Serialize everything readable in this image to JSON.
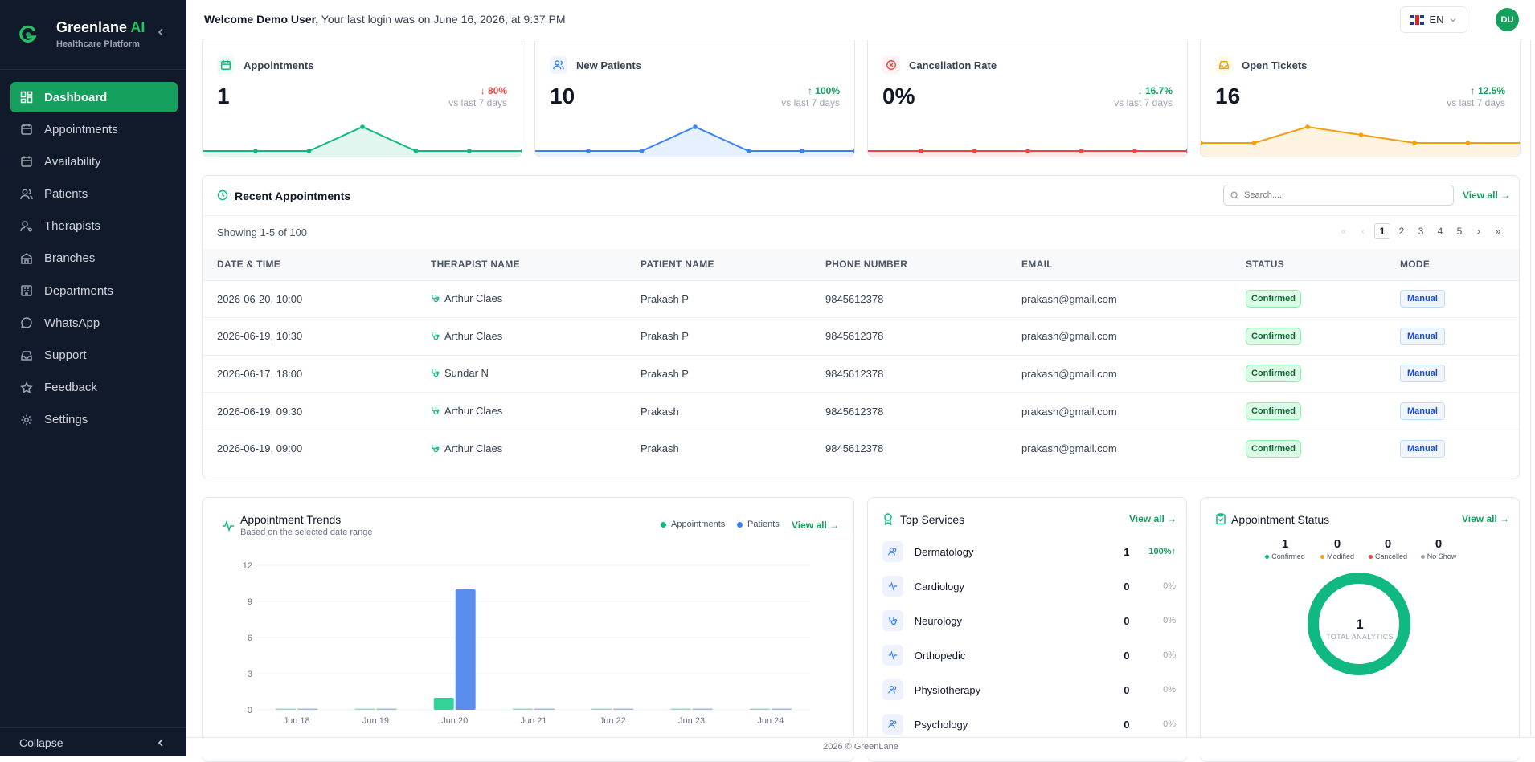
{
  "brand": {
    "name": "Greenlane",
    "name_accent": "AI",
    "subtitle": "Healthcare Platform"
  },
  "sidebar": {
    "items": [
      {
        "label": "Dashboard",
        "icon": "dashboard-icon",
        "active": true
      },
      {
        "label": "Appointments",
        "icon": "calendar-icon"
      },
      {
        "label": "Availability",
        "icon": "calendar-icon"
      },
      {
        "label": "Patients",
        "icon": "users-icon"
      },
      {
        "label": "Therapists",
        "icon": "user-stethoscope-icon"
      },
      {
        "label": "Branches",
        "icon": "building-icon"
      },
      {
        "label": "Departments",
        "icon": "building-icon"
      },
      {
        "label": "WhatsApp",
        "icon": "chat-icon"
      },
      {
        "label": "Support",
        "icon": "inbox-icon"
      },
      {
        "label": "Feedback",
        "icon": "star-icon"
      },
      {
        "label": "Settings",
        "icon": "gear-icon"
      }
    ],
    "collapse_label": "Collapse"
  },
  "header": {
    "welcome_bold": "Welcome Demo User,",
    "welcome_rest": " Your last login was on June 16, 2026, at 9:37 PM",
    "language": "EN",
    "avatar_initials": "DU"
  },
  "stats": [
    {
      "label": "Appointments",
      "value": "1",
      "change": "↓ 80%",
      "direction": "down",
      "sub": "vs last 7 days",
      "color": "#10b981",
      "spark": [
        0,
        0,
        1,
        0,
        0,
        0
      ]
    },
    {
      "label": "New Patients",
      "value": "10",
      "change": "↑ 100%",
      "direction": "up",
      "sub": "vs last 7 days",
      "color": "#3b82f6",
      "spark": [
        0,
        0,
        10,
        0,
        0,
        0
      ]
    },
    {
      "label": "Cancellation Rate",
      "value": "0%",
      "change": "↓ 16.7%",
      "direction": "up",
      "sub": "vs last 7 days",
      "color": "#ef4444",
      "spark": [
        0,
        0,
        0,
        0,
        0,
        0
      ]
    },
    {
      "label": "Open Tickets",
      "value": "16",
      "change": "↑ 12.5%",
      "direction": "up",
      "sub": "vs last 7 days",
      "color": "#f59e0b",
      "spark": [
        1,
        1,
        3,
        2,
        1,
        1,
        1
      ]
    }
  ],
  "recent": {
    "title": "Recent Appointments",
    "search_placeholder": "Search....",
    "view_all": "View all →",
    "showing": "Showing 1-5 of 100",
    "pages": [
      "1",
      "2",
      "3",
      "4",
      "5"
    ],
    "columns": [
      "DATE & TIME",
      "THERAPIST NAME",
      "PATIENT NAME",
      "PHONE NUMBER",
      "EMAIL",
      "STATUS",
      "MODE"
    ],
    "rows": [
      [
        "2026-06-20, 10:00",
        "Arthur Claes",
        "Prakash P",
        "9845612378",
        "prakash@gmail.com",
        "Confirmed",
        "Manual"
      ],
      [
        "2026-06-19, 10:30",
        "Arthur Claes",
        "Prakash P",
        "9845612378",
        "prakash@gmail.com",
        "Confirmed",
        "Manual"
      ],
      [
        "2026-06-17, 18:00",
        "Sundar N",
        "Prakash P",
        "9845612378",
        "prakash@gmail.com",
        "Confirmed",
        "Manual"
      ],
      [
        "2026-06-19, 09:30",
        "Arthur Claes",
        "Prakash",
        "9845612378",
        "prakash@gmail.com",
        "Confirmed",
        "Manual"
      ],
      [
        "2026-06-19, 09:00",
        "Arthur Claes",
        "Prakash",
        "9845612378",
        "prakash@gmail.com",
        "Confirmed",
        "Manual"
      ]
    ]
  },
  "trends": {
    "title": "Appointment Trends",
    "subtitle": "Based on the selected date range",
    "view_all": "View all →"
  },
  "chart_data": {
    "type": "bar",
    "categories": [
      "Jun 18",
      "Jun 19",
      "Jun 20",
      "Jun 21",
      "Jun 22",
      "Jun 23",
      "Jun 24"
    ],
    "series": [
      {
        "name": "Appointments",
        "values": [
          0,
          0,
          1,
          0,
          0,
          0,
          0
        ],
        "color": "#34d399"
      },
      {
        "name": "Patients",
        "values": [
          0,
          0,
          10,
          0,
          0,
          0,
          0
        ],
        "color": "#5b8def"
      }
    ],
    "yticks": [
      0,
      3,
      6,
      9,
      12
    ],
    "ylim": [
      0,
      12
    ],
    "legend": "top-right",
    "grid": true
  },
  "services": {
    "title": "Top Services",
    "view_all": "View all →",
    "items": [
      {
        "name": "Dermatology",
        "count": "1",
        "pct": "100%↑",
        "up": true,
        "icon": "users-icon"
      },
      {
        "name": "Cardiology",
        "count": "0",
        "pct": "0%",
        "icon": "pulse-icon"
      },
      {
        "name": "Neurology",
        "count": "0",
        "pct": "0%",
        "icon": "stethoscope-icon"
      },
      {
        "name": "Orthopedic",
        "count": "0",
        "pct": "0%",
        "icon": "pulse-icon"
      },
      {
        "name": "Physiotherapy",
        "count": "0",
        "pct": "0%",
        "icon": "users-icon"
      },
      {
        "name": "Psychology",
        "count": "0",
        "pct": "0%",
        "icon": "users-icon"
      }
    ]
  },
  "status": {
    "title": "Appointment Status",
    "view_all": "View all →",
    "items": [
      {
        "label": "Confirmed",
        "value": "1",
        "color": "#10b981"
      },
      {
        "label": "Modified",
        "value": "0",
        "color": "#f59e0b"
      },
      {
        "label": "Cancelled",
        "value": "0",
        "color": "#ef4444"
      },
      {
        "label": "No Show",
        "value": "0",
        "color": "#9ca3af"
      }
    ],
    "total": "1",
    "total_label": "TOTAL ANALYTICS"
  },
  "footer": {
    "text": "2026 © GreenLane"
  }
}
